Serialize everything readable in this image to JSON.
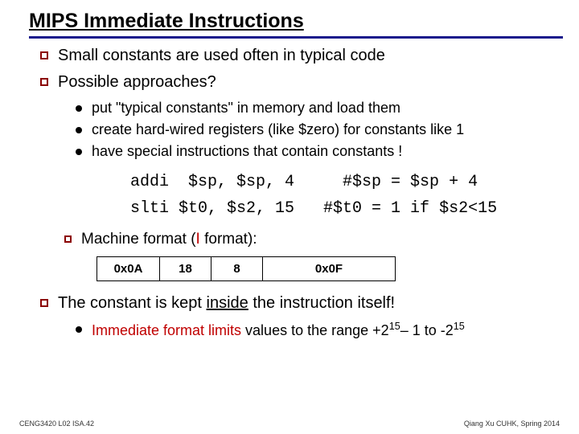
{
  "title": "MIPS Immediate Instructions",
  "bullet1": "Small constants are used often in typical code",
  "bullet2": "Possible approaches?",
  "sub": {
    "s1": "put \"typical constants\" in memory and load them",
    "s2": "create hard-wired registers (like $zero) for constants like 1",
    "s3": "have special instructions that contain constants !"
  },
  "code": {
    "line1": "addi  $sp, $sp, 4     #$sp = $sp + 4",
    "line2": "slti $t0, $s2, 15   #$t0 = 1 if $s2<15"
  },
  "machine_label_pre": "Machine format (",
  "machine_label_i": "I",
  "machine_label_post": " format):",
  "table": {
    "c1": "0x0A",
    "c2": "18",
    "c3": "8",
    "c4": "0x0F"
  },
  "bullet3_pre": "The constant is kept ",
  "bullet3_inside": "inside",
  "bullet3_post": " the instruction itself!",
  "sub2_pre": "Immediate format ",
  "sub2_limits": "limits",
  "sub2_mid": " values to the range +2",
  "sub2_e1": "15",
  "sub2_mid2": "– 1 to -2",
  "sub2_e2": "15",
  "footer_left": "CENG3420 L02 ISA.42",
  "footer_right": "Qiang Xu   CUHK, Spring 2014",
  "colors": {
    "rule": "#1a1a8c",
    "bullet_border": "#8b0000",
    "accent_red": "#c00000"
  }
}
